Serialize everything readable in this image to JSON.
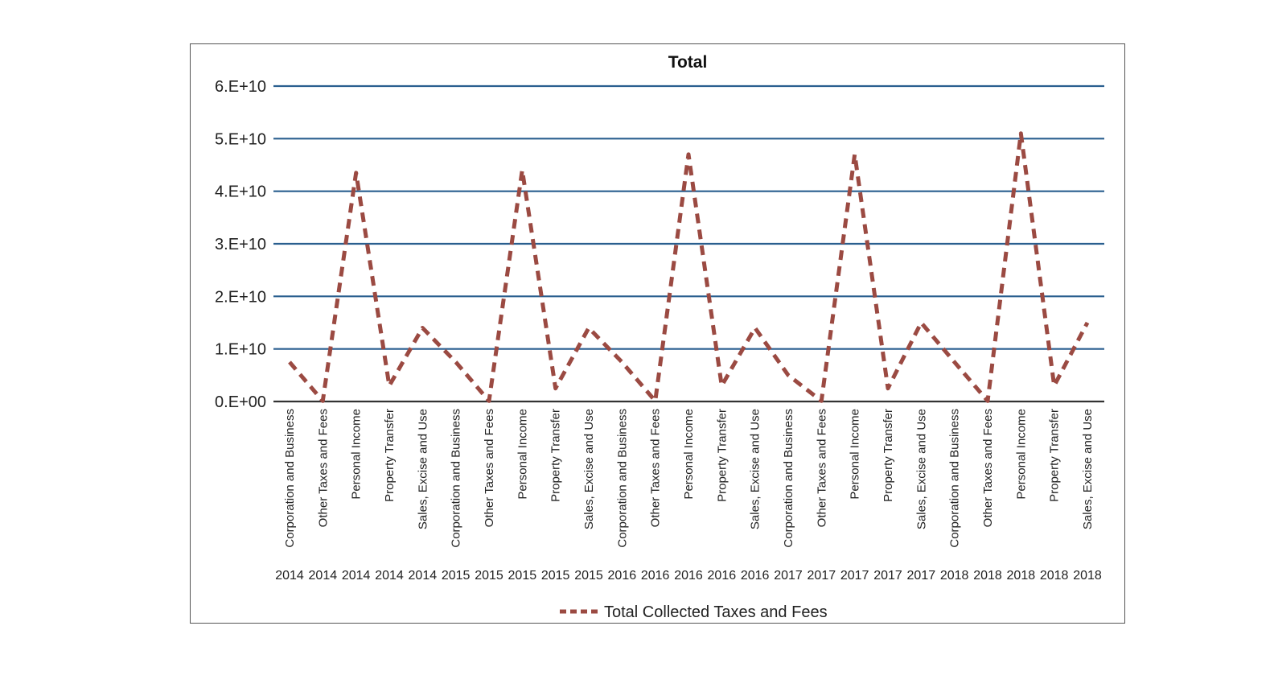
{
  "chart_data": {
    "type": "line",
    "title": "Total",
    "xlabel": "",
    "ylabel": "",
    "ylim": [
      0,
      60000000000
    ],
    "yticks": [
      0,
      10000000000,
      20000000000,
      30000000000,
      40000000000,
      50000000000,
      60000000000
    ],
    "ytick_labels": [
      "0.E+00",
      "1.E+10",
      "2.E+10",
      "3.E+10",
      "4.E+10",
      "5.E+10",
      "6.E+10"
    ],
    "grid": true,
    "legend_position": "bottom",
    "categories": [
      {
        "label": "Corporation and Business",
        "year": "2014"
      },
      {
        "label": "Other Taxes and Fees",
        "year": "2014"
      },
      {
        "label": "Personal Income",
        "year": "2014"
      },
      {
        "label": "Property Transfer",
        "year": "2014"
      },
      {
        "label": "Sales, Excise and Use",
        "year": "2014"
      },
      {
        "label": "Corporation and Business",
        "year": "2015"
      },
      {
        "label": "Other Taxes and Fees",
        "year": "2015"
      },
      {
        "label": "Personal Income",
        "year": "2015"
      },
      {
        "label": "Property Transfer",
        "year": "2015"
      },
      {
        "label": "Sales, Excise and Use",
        "year": "2015"
      },
      {
        "label": "Corporation and Business",
        "year": "2016"
      },
      {
        "label": "Other Taxes and Fees",
        "year": "2016"
      },
      {
        "label": "Personal Income",
        "year": "2016"
      },
      {
        "label": "Property Transfer",
        "year": "2016"
      },
      {
        "label": "Sales, Excise and Use",
        "year": "2016"
      },
      {
        "label": "Corporation and Business",
        "year": "2017"
      },
      {
        "label": "Other Taxes and Fees",
        "year": "2017"
      },
      {
        "label": "Personal Income",
        "year": "2017"
      },
      {
        "label": "Property Transfer",
        "year": "2017"
      },
      {
        "label": "Sales, Excise and Use",
        "year": "2017"
      },
      {
        "label": "Corporation and Business",
        "year": "2018"
      },
      {
        "label": "Other Taxes and Fees",
        "year": "2018"
      },
      {
        "label": "Personal Income",
        "year": "2018"
      },
      {
        "label": "Property Transfer",
        "year": "2018"
      },
      {
        "label": "Sales, Excise and Use",
        "year": "2018"
      }
    ],
    "series": [
      {
        "name": "Total Collected Taxes and Fees",
        "color": "#9b4a42",
        "style": "dashed",
        "values": [
          7500000000,
          100000000,
          43500000000,
          3000000000,
          14000000000,
          7500000000,
          100000000,
          44000000000,
          2500000000,
          14000000000,
          7500000000,
          100000000,
          47000000000,
          3000000000,
          14000000000,
          5000000000,
          100000000,
          47000000000,
          2500000000,
          15000000000,
          7500000000,
          100000000,
          51000000000,
          3000000000,
          15000000000
        ]
      }
    ],
    "colors": {
      "grid": "#2a5f8f",
      "axis": "#333333"
    }
  }
}
